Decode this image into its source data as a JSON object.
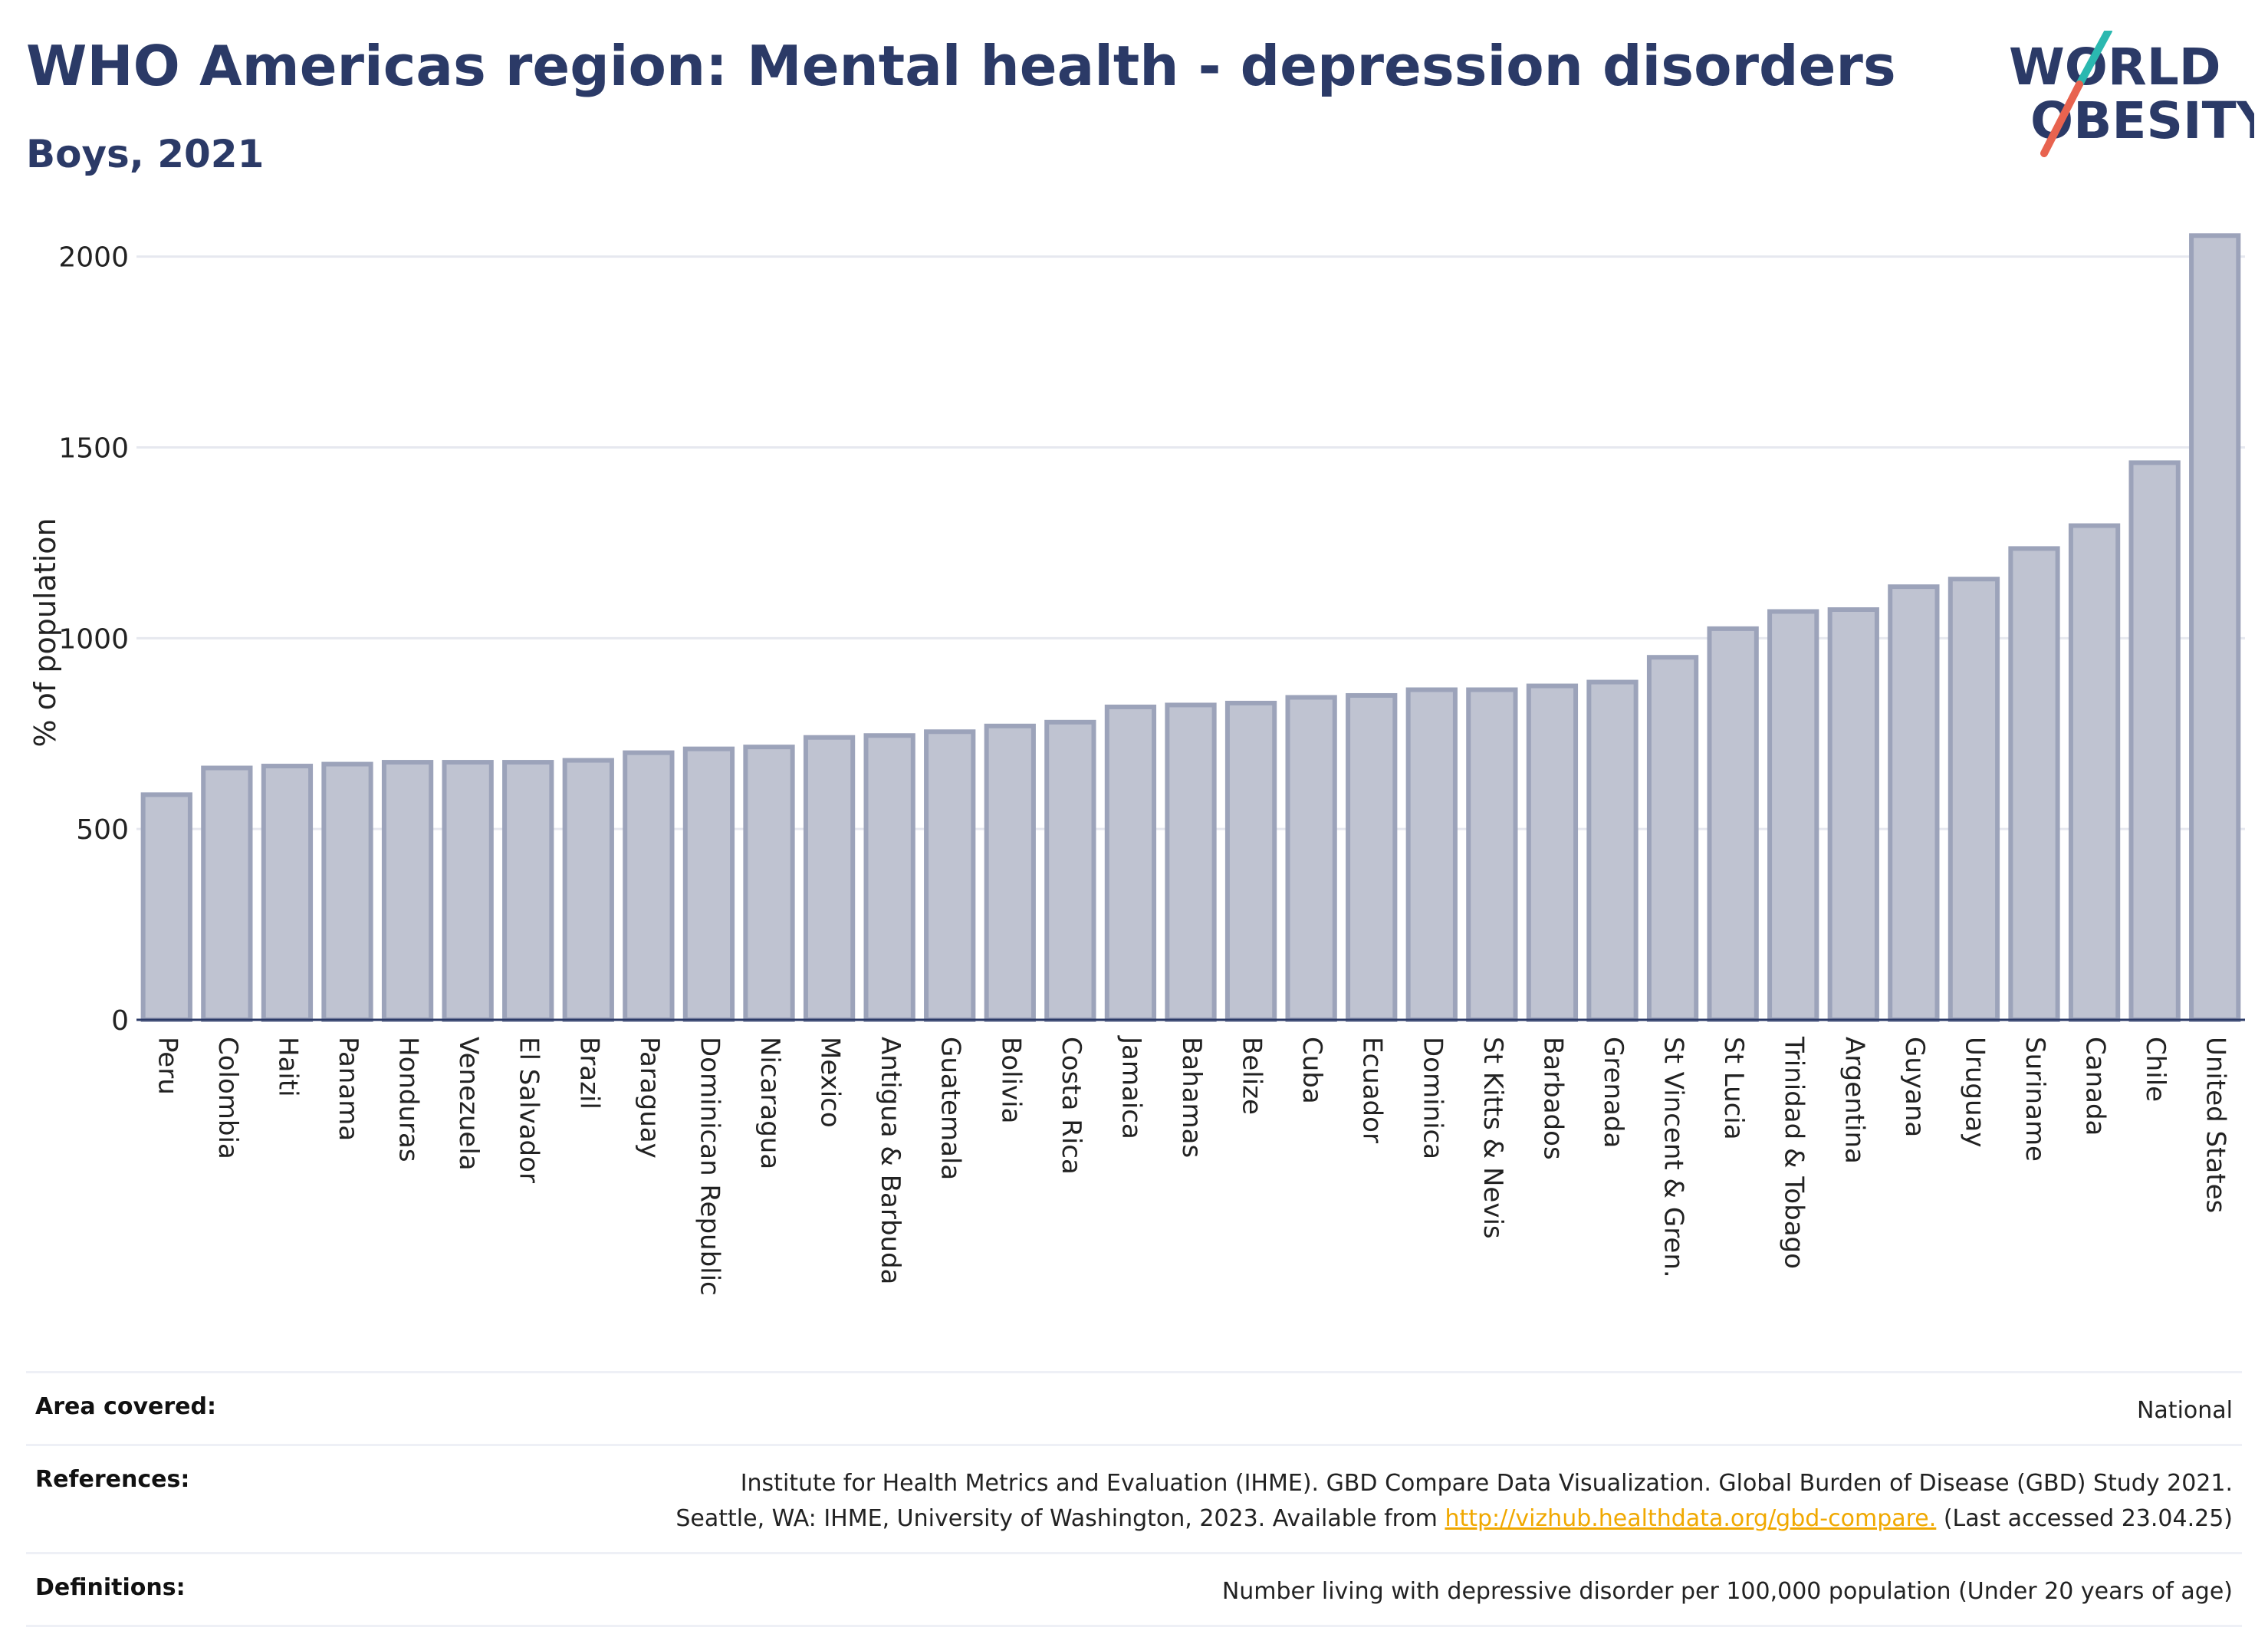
{
  "header": {
    "title": "WHO Americas region: Mental health - depression disorders",
    "subtitle": "Boys, 2021"
  },
  "logo": {
    "line1": "WORLD",
    "line2": "OBESITY",
    "colors": [
      "#2b3a67",
      "#e8634f",
      "#2bb8b0"
    ]
  },
  "chart_data": {
    "type": "bar",
    "title": "WHO Americas region: Mental health - depression disorders",
    "subtitle": "Boys, 2021",
    "xlabel": "",
    "ylabel": "% of population",
    "ylim": [
      0,
      2150
    ],
    "yticks": [
      0,
      500,
      1000,
      1500,
      2000
    ],
    "grid": true,
    "bar_fill": "#bfc3d1",
    "bar_stroke": "#9ca3ba",
    "categories": [
      "Peru",
      "Colombia",
      "Haiti",
      "Panama",
      "Honduras",
      "Venezuela",
      "El Salvador",
      "Brazil",
      "Paraguay",
      "Dominican Republic",
      "Nicaragua",
      "Mexico",
      "Antigua & Barbuda",
      "Guatemala",
      "Bolivia",
      "Costa Rica",
      "Jamaica",
      "Bahamas",
      "Belize",
      "Cuba",
      "Ecuador",
      "Dominica",
      "St Kitts & Nevis",
      "Barbados",
      "Grenada",
      "St Vincent & Gren.",
      "St Lucia",
      "Trinidad & Tobago",
      "Argentina",
      "Guyana",
      "Uruguay",
      "Suriname",
      "Canada",
      "Chile",
      "United States"
    ],
    "values": [
      590,
      660,
      665,
      670,
      675,
      675,
      675,
      680,
      700,
      710,
      715,
      740,
      745,
      755,
      770,
      780,
      820,
      825,
      830,
      845,
      850,
      865,
      865,
      875,
      885,
      950,
      1025,
      1070,
      1075,
      1135,
      1155,
      1235,
      1295,
      1460,
      2055
    ]
  },
  "footer": {
    "rows": [
      {
        "label": "Area covered:",
        "lines": [
          "National"
        ]
      },
      {
        "label": "References:",
        "lines": [
          "Institute for Health Metrics and Evaluation (IHME). GBD Compare Data Visualization. Global Burden of Disease (GBD) Study 2021."
        ],
        "line2_prefix": "Seattle, WA: IHME, University of Washington, 2023. Available from ",
        "link": "http://vizhub.healthdata.org/gbd-compare.",
        "line2_suffix": " (Last accessed 23.04.25)"
      },
      {
        "label": "Definitions:",
        "lines": [
          "Number living with depressive disorder per 100,000 population (Under 20 years of age)"
        ]
      }
    ]
  }
}
